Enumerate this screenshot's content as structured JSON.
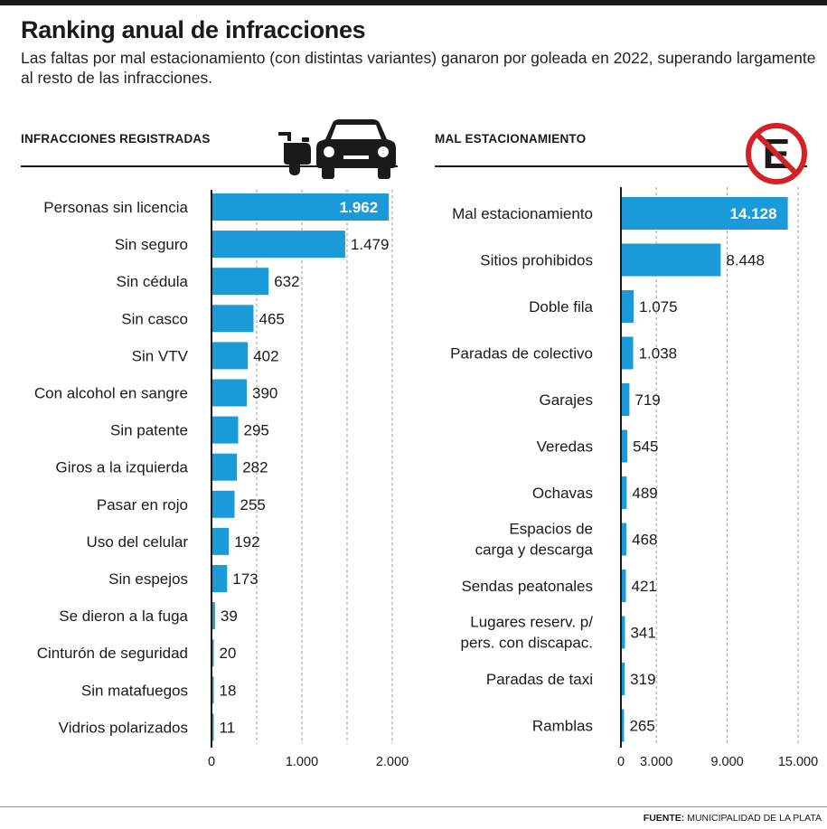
{
  "header": {
    "title": "Ranking anual de infracciones",
    "subtitle": "Las faltas por mal estacionamiento (con distintas variantes) ganaron por goleada en 2022, superando largamente al resto de las infracciones."
  },
  "source": {
    "label": "FUENTE:",
    "name": "MUNICIPALIDAD DE LA PLATA"
  },
  "icons": [
    "motorcycle-icon",
    "car-icon",
    "no-parking-icon"
  ],
  "colors": {
    "bar": "#1a9ad9",
    "text": "#1a1a1a",
    "grid": "#9a9a9a",
    "no_parking_red": "#d42027"
  },
  "chart_data": [
    {
      "type": "bar",
      "orientation": "horizontal",
      "title": "INFRACCIONES REGISTRADAS",
      "categories": [
        "Personas sin licencia",
        "Sin seguro",
        "Sin cédula",
        "Sin casco",
        "Sin VTV",
        "Con alcohol en sangre",
        "Sin patente",
        "Giros a la izquierda",
        "Pasar en rojo",
        "Uso del celular",
        "Sin espejos",
        "Se dieron a la fuga",
        "Cinturón de seguridad",
        "Sin matafuegos",
        "Vidrios polarizados"
      ],
      "values": [
        1962,
        1479,
        632,
        465,
        402,
        390,
        295,
        282,
        255,
        192,
        173,
        39,
        20,
        18,
        11
      ],
      "value_labels": [
        "1.962",
        "1.479",
        "632",
        "465",
        "402",
        "390",
        "295",
        "282",
        "255",
        "192",
        "173",
        "39",
        "20",
        "18",
        "11"
      ],
      "xlim": [
        0,
        2000
      ],
      "ticks": [
        0,
        1000,
        2000
      ],
      "tick_labels": [
        "0",
        "1.000",
        "2.000"
      ],
      "grid": [
        500,
        1000,
        1500,
        2000
      ],
      "grid_lines": "dashed-vertical"
    },
    {
      "type": "bar",
      "orientation": "horizontal",
      "title": "MAL ESTACIONAMIENTO",
      "categories": [
        "Mal estacionamiento",
        "Sitios prohibidos",
        "Doble fila",
        "Paradas de colectivo",
        "Garajes",
        "Veredas",
        "Ochavas",
        "Espacios de\ncarga y descarga",
        "Sendas peatonales",
        "Lugares reserv. p/\npers. con discapac.",
        "Paradas de taxi",
        "Ramblas"
      ],
      "values": [
        14128,
        8448,
        1075,
        1038,
        719,
        545,
        489,
        468,
        421,
        341,
        319,
        265
      ],
      "value_labels": [
        "14.128",
        "8.448",
        "1.075",
        "1.038",
        "719",
        "545",
        "489",
        "468",
        "421",
        "341",
        "319",
        "265"
      ],
      "xlim": [
        0,
        15000
      ],
      "ticks": [
        0,
        3000,
        9000,
        15000
      ],
      "tick_labels": [
        "0",
        "3.000",
        "9.000",
        "15.000"
      ],
      "grid": [
        3000,
        9000,
        15000
      ],
      "grid_lines": "dashed-vertical"
    }
  ]
}
